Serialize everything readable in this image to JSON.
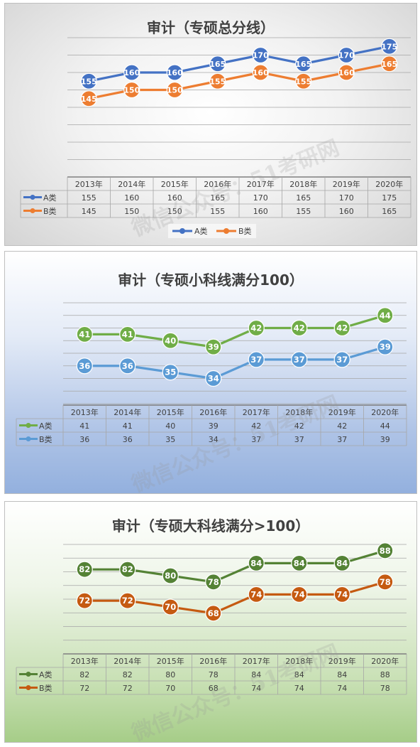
{
  "chart_data": [
    {
      "type": "line",
      "title": "审计（专硕总分线）",
      "categories": [
        "2013年",
        "2014年",
        "2015年",
        "2016年",
        "2017年",
        "2018年",
        "2019年",
        "2020年"
      ],
      "series": [
        {
          "name": "A类",
          "values": [
            155,
            160,
            160,
            165,
            170,
            165,
            170,
            175
          ]
        },
        {
          "name": "B类",
          "values": [
            145,
            150,
            150,
            155,
            160,
            155,
            160,
            165
          ]
        }
      ],
      "colors": [
        "#4472c4",
        "#ed7d31"
      ],
      "ylim": [
        100,
        180
      ],
      "grid": true,
      "legend": "bottom",
      "data_table": true
    },
    {
      "type": "line",
      "title": "审计（专硕小科线满分100）",
      "categories": [
        "2013年",
        "2014年",
        "2015年",
        "2016年",
        "2017年",
        "2018年",
        "2019年",
        "2020年"
      ],
      "series": [
        {
          "name": "A类",
          "values": [
            41,
            41,
            40,
            39,
            42,
            42,
            42,
            44
          ]
        },
        {
          "name": "B类",
          "values": [
            36,
            36,
            35,
            34,
            37,
            37,
            37,
            39
          ]
        }
      ],
      "colors": [
        "#70ad47",
        "#5b9bd5"
      ],
      "ylim": [
        30,
        46
      ],
      "grid": true,
      "legend": "none",
      "data_table": true
    },
    {
      "type": "line",
      "title": "审计（专硕大科线满分>100）",
      "categories": [
        "2013年",
        "2014年",
        "2015年",
        "2016年",
        "2017年",
        "2018年",
        "2019年",
        "2020年"
      ],
      "series": [
        {
          "name": "A类",
          "values": [
            82,
            82,
            80,
            78,
            84,
            84,
            84,
            88
          ]
        },
        {
          "name": "B类",
          "values": [
            72,
            72,
            70,
            68,
            74,
            74,
            74,
            78
          ]
        }
      ],
      "colors": [
        "#548235",
        "#c55a11"
      ],
      "ylim": [
        55,
        90
      ],
      "grid": true,
      "legend": "none",
      "data_table": true
    }
  ],
  "watermark": "微信公众号：51考研网"
}
